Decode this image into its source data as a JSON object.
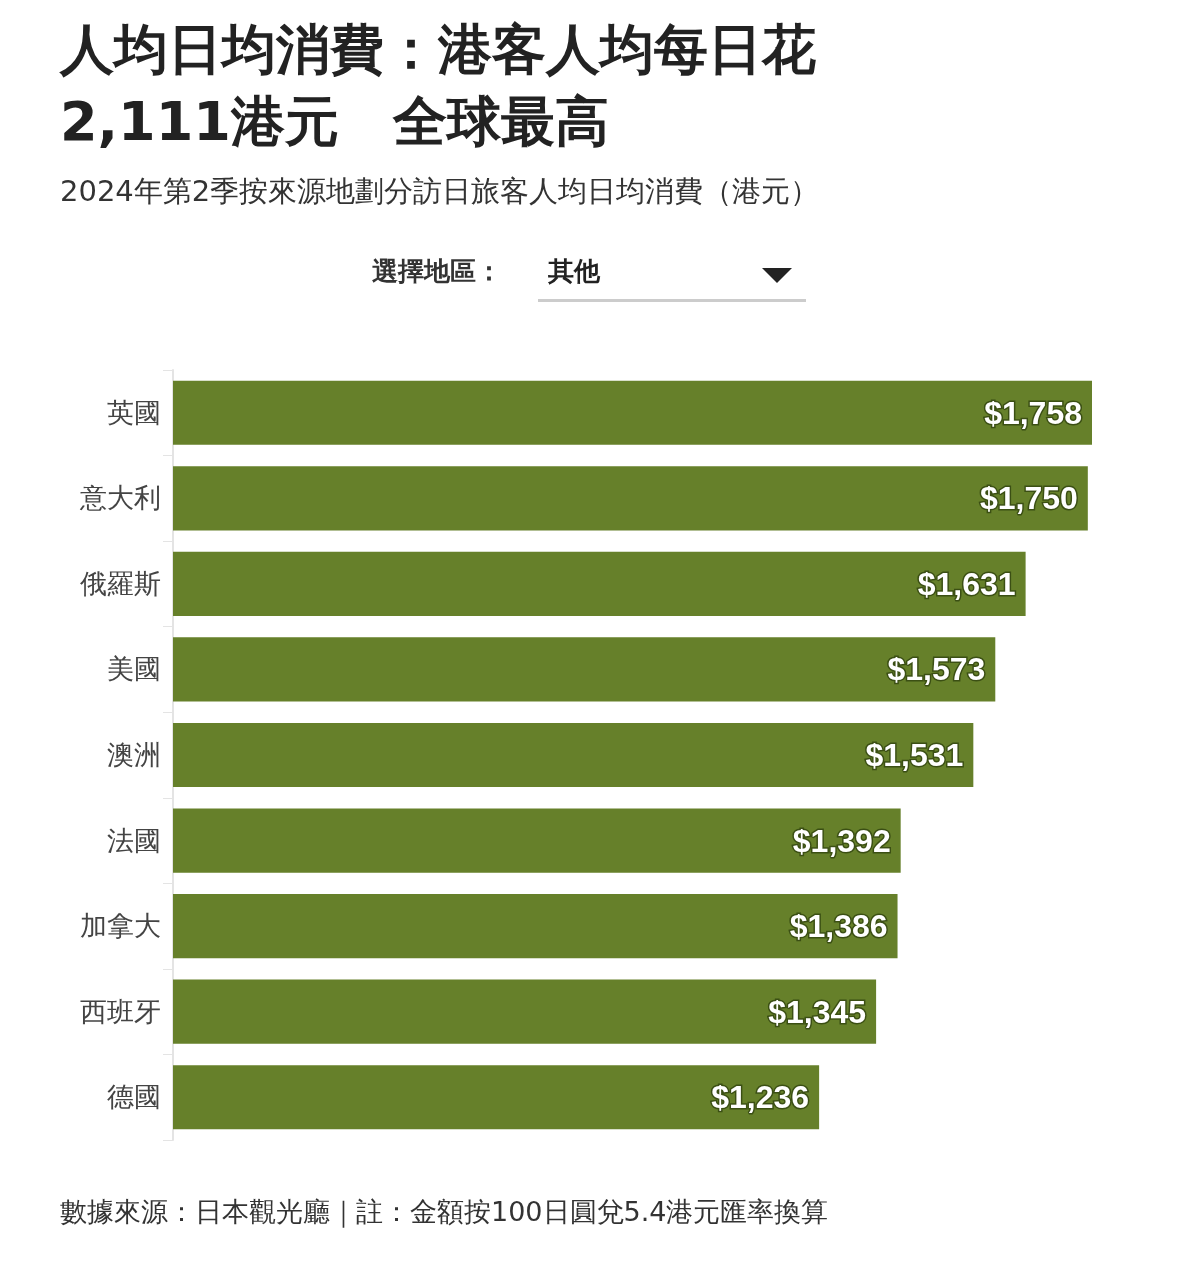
{
  "chart_data": {
    "type": "bar",
    "orientation": "horizontal",
    "title": "人均日均消費：港客人均每日花\n2,111港元　全球最高",
    "subtitle": "2024年第2季按來源地劃分訪日旅客人均日均消費（港元）",
    "categories": [
      "英國",
      "意大利",
      "俄羅斯",
      "美國",
      "澳洲",
      "法國",
      "加拿大",
      "西班牙",
      "德國"
    ],
    "values": [
      1758,
      1750,
      1631,
      1573,
      1531,
      1392,
      1386,
      1345,
      1236
    ],
    "value_labels": [
      "$1,758",
      "$1,750",
      "$1,631",
      "$1,573",
      "$1,531",
      "$1,392",
      "$1,386",
      "$1,345",
      "$1,236"
    ],
    "color": "#66802a",
    "annotations": [
      "選擇地區：",
      "其他",
      "數據來源：日本觀光廳｜註：金額按100日圓兌5.4港元匯率換算"
    ]
  }
}
